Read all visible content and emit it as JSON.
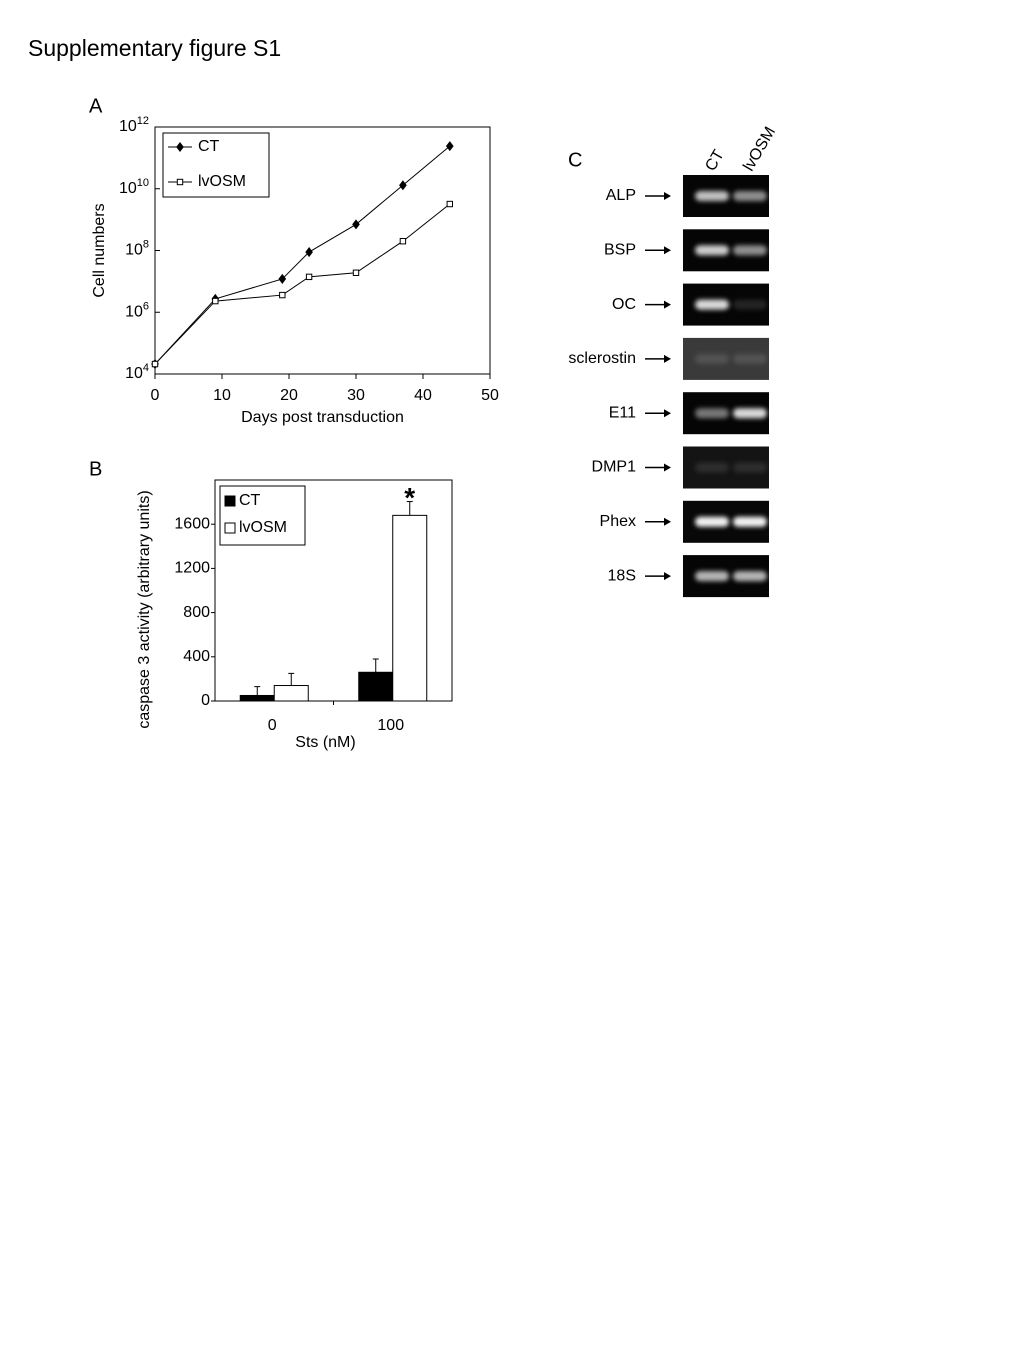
{
  "title": "Supplementary figure S1",
  "chart_data": [
    {
      "panel": "A",
      "type": "line",
      "x_label": "Days post transduction",
      "y_label": "Cell numbers",
      "x": [
        0,
        9,
        19,
        23,
        30,
        37,
        44
      ],
      "series": [
        {
          "name": "CT",
          "color": "#000000",
          "marker": "diamond",
          "marker_fill": "#000000",
          "values": [
            21000,
            2700000,
            12000000,
            89000000,
            700000000,
            13000000000,
            240000000000
          ]
        },
        {
          "name": "lvOSM",
          "color": "#000000",
          "marker": "square",
          "marker_fill": "#ffffff",
          "values": [
            21000,
            2300000,
            3600000,
            14000000,
            19000000,
            200000000,
            3200000000
          ]
        }
      ],
      "xlim": [
        0,
        50
      ],
      "xticks": [
        0,
        10,
        20,
        30,
        40,
        50
      ],
      "ylim": [
        10000,
        1000000000000
      ],
      "log_y": true,
      "yticks": [
        {
          "value": 10000,
          "label": "10",
          "exponent": "4"
        },
        {
          "value": 1000000,
          "label": "10",
          "exponent": "6"
        },
        {
          "value": 100000000,
          "label": "10",
          "exponent": "8"
        },
        {
          "value": 10000000000,
          "label": "10",
          "exponent": "10"
        },
        {
          "value": 1000000000000,
          "label": "10",
          "exponent": "12"
        }
      ],
      "legend": "upper left"
    },
    {
      "panel": "B",
      "type": "bar",
      "x_label": "Sts (nM)",
      "y_label": "caspase 3 activity (arbitrary units)",
      "categories": [
        "0",
        "100"
      ],
      "series": [
        {
          "name": "CT",
          "color": "#000000",
          "values": [
            50,
            260
          ],
          "errors": [
            80,
            120
          ]
        },
        {
          "name": "lvOSM",
          "color": "#ffffff",
          "values": [
            140,
            1680
          ],
          "errors": [
            110,
            125
          ]
        }
      ],
      "ylim": [
        0,
        2000
      ],
      "yticks": [
        0,
        400,
        800,
        1200,
        1600
      ],
      "annotations": [
        {
          "text": "*",
          "category": 1,
          "series": 1
        }
      ],
      "legend": "upper left"
    }
  ],
  "gel": {
    "panel": "C",
    "lanes": [
      "CT",
      "lvOSM"
    ],
    "genes": [
      "ALP",
      "BSP",
      "OC",
      "sclerostin",
      "E11",
      "DMP1",
      "Phex",
      "18S"
    ]
  }
}
